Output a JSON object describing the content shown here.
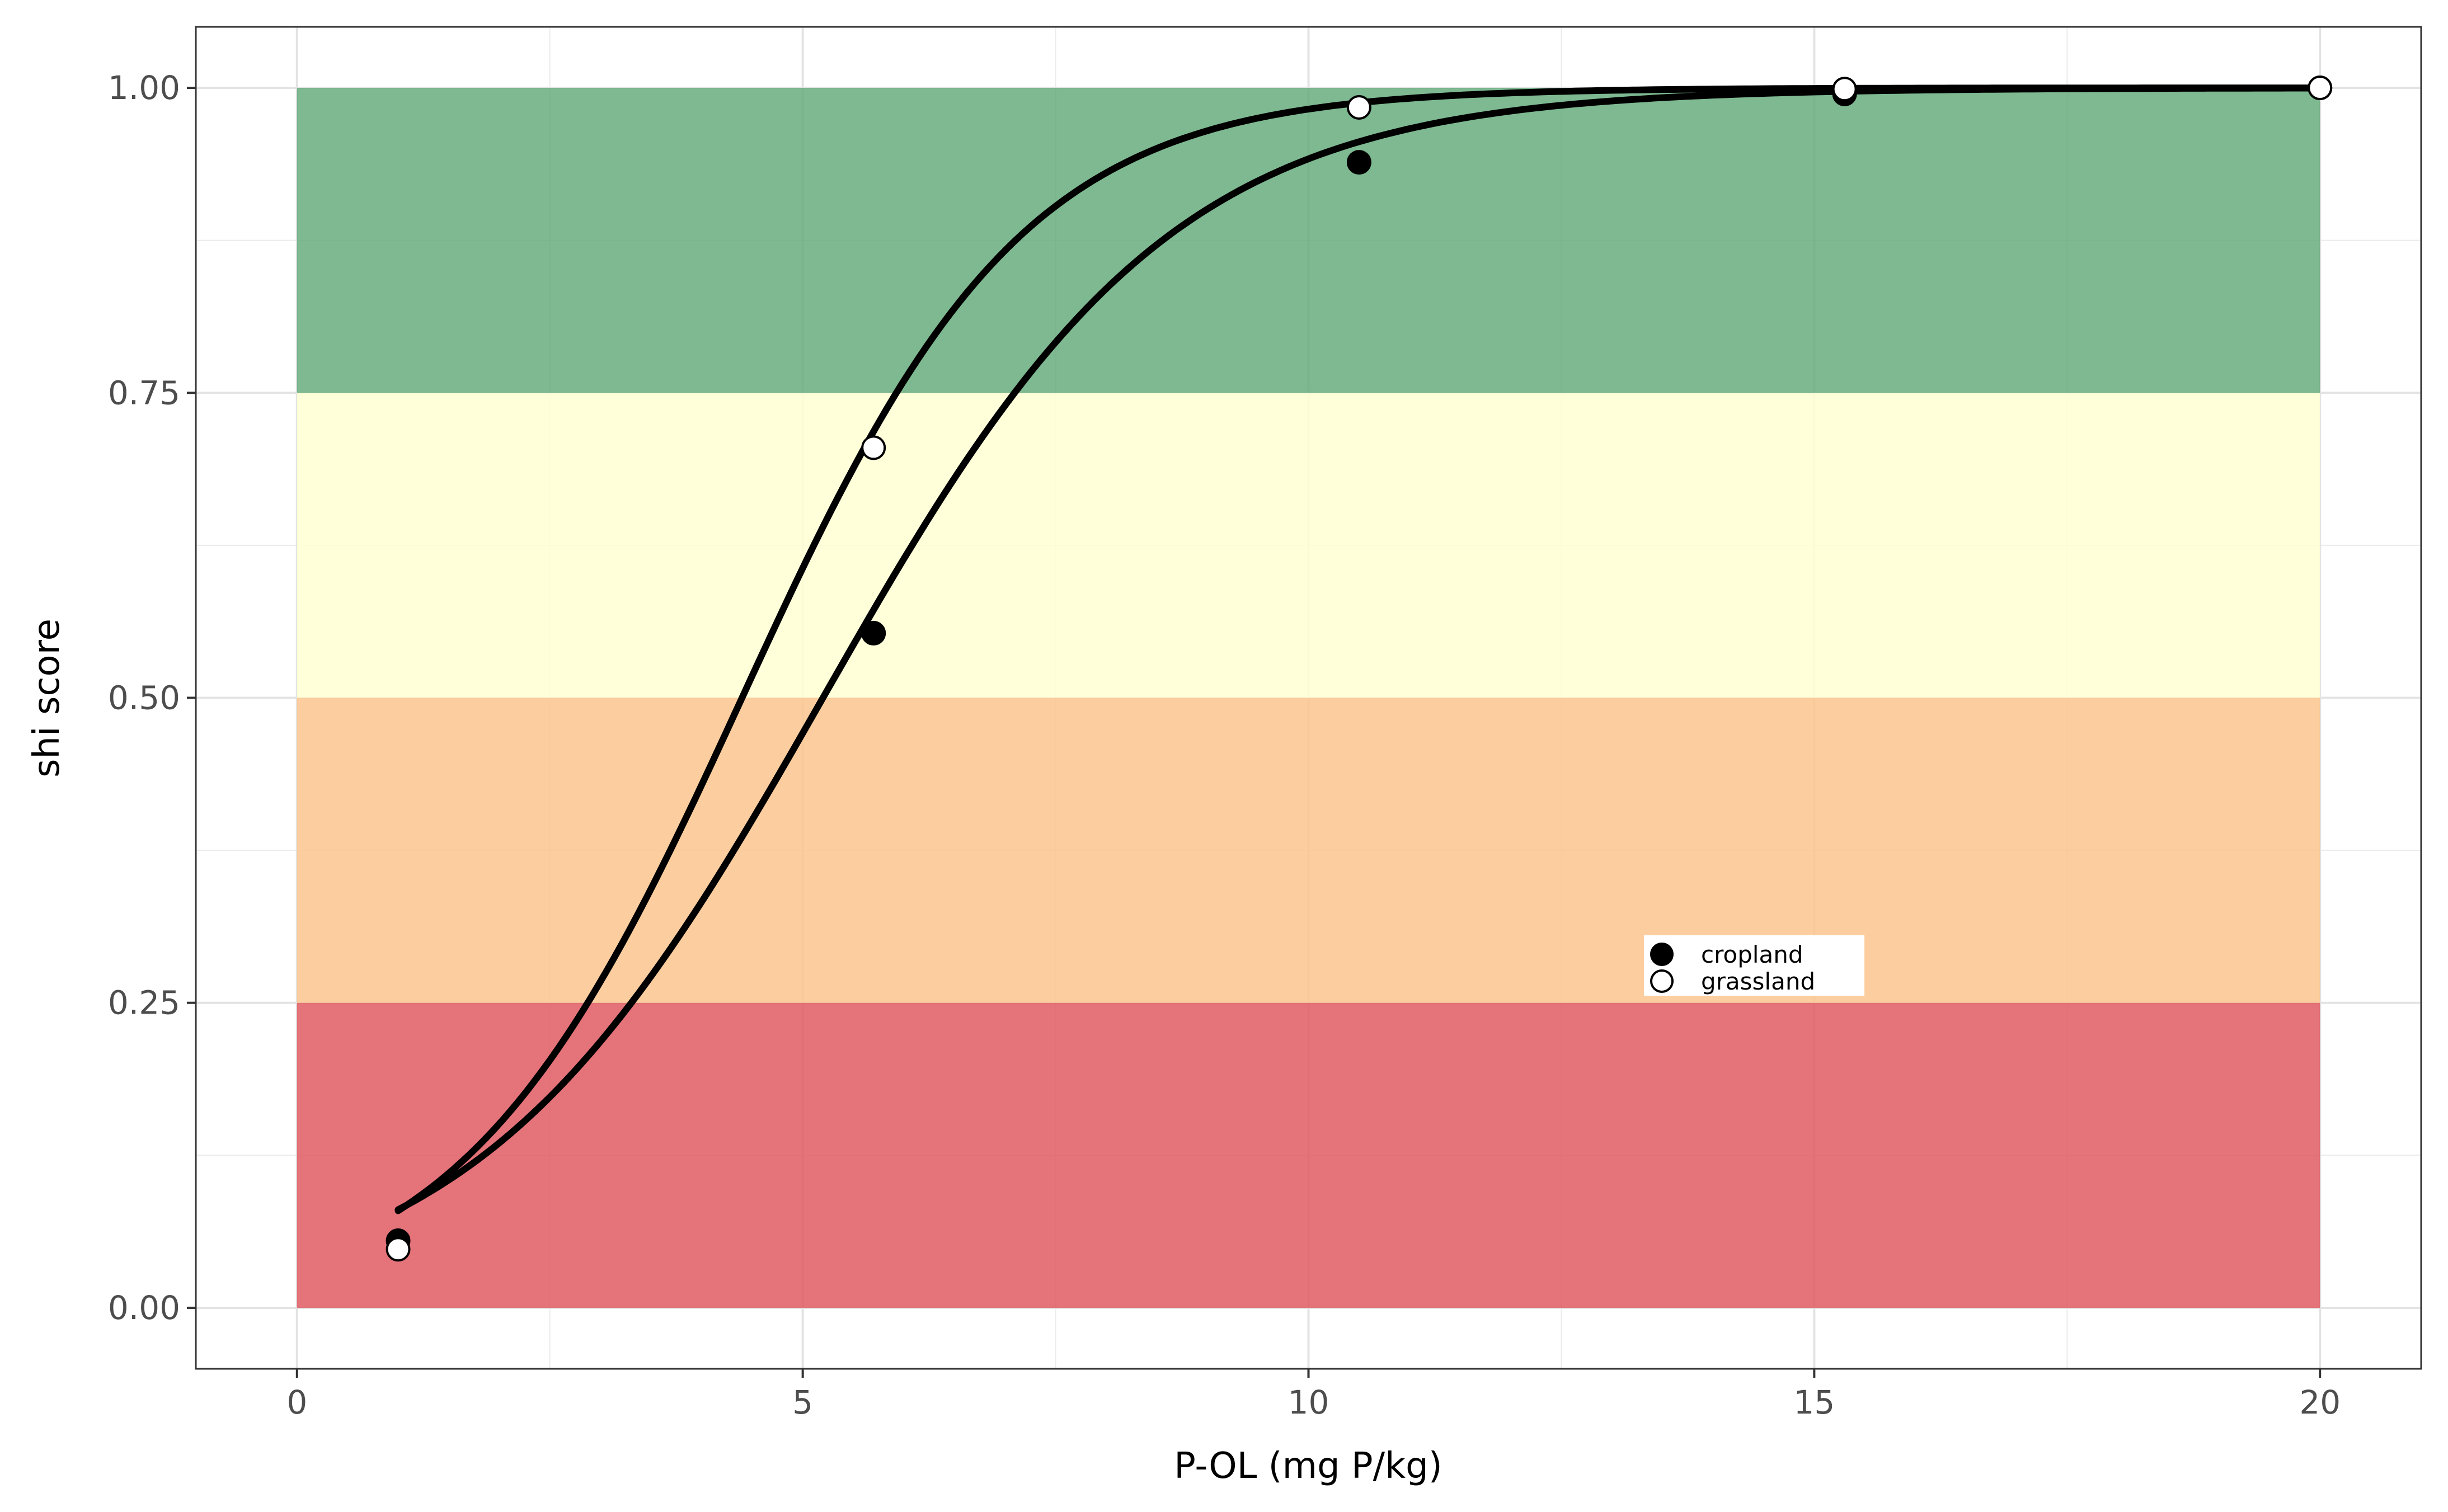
{
  "chart_data": {
    "type": "line",
    "title": "",
    "xlabel": "P-OL (mg P/kg)",
    "ylabel": "shi score",
    "xlim": [
      -1,
      21
    ],
    "ylim": [
      -0.05,
      1.05
    ],
    "x_ticks": [
      0,
      5,
      10,
      15,
      20
    ],
    "x_tick_labels": [
      "0",
      "5",
      "10",
      "15",
      "20"
    ],
    "y_ticks": [
      0,
      0.25,
      0.5,
      0.75,
      1.0
    ],
    "y_tick_labels": [
      "0.00",
      "0.25",
      "0.50",
      "0.75",
      "1.00"
    ],
    "grid": true,
    "legend_position": "inside-bottom-right",
    "bands": [
      {
        "x": [
          0,
          20
        ],
        "y": [
          0.0,
          0.25
        ],
        "color": "#e15b63",
        "opacity": 0.85
      },
      {
        "x": [
          0,
          20
        ],
        "y": [
          0.25,
          0.5
        ],
        "color": "#fcc68e",
        "opacity": 0.85
      },
      {
        "x": [
          0,
          20
        ],
        "y": [
          0.5,
          0.75
        ],
        "color": "#ffffd4",
        "opacity": 0.85
      },
      {
        "x": [
          0,
          20
        ],
        "y": [
          0.75,
          1.0
        ],
        "color": "#5ea876",
        "opacity": 0.8
      }
    ],
    "series": [
      {
        "name": "cropland",
        "marker": "filled",
        "color": "#000000",
        "x": [
          1.0,
          5.7,
          10.5,
          15.3,
          20.0
        ],
        "y": [
          0.055,
          0.553,
          0.939,
          0.995,
          1.0
        ],
        "curve_midpoint": 5.2,
        "curve_slope": 0.58
      },
      {
        "name": "grassland",
        "marker": "open",
        "color": "#000000",
        "x": [
          1.0,
          5.7,
          10.5,
          15.3,
          20.0
        ],
        "y": [
          0.048,
          0.705,
          0.984,
          0.999,
          1.0
        ],
        "curve_midpoint": 4.4,
        "curve_slope": 0.72
      }
    ]
  }
}
